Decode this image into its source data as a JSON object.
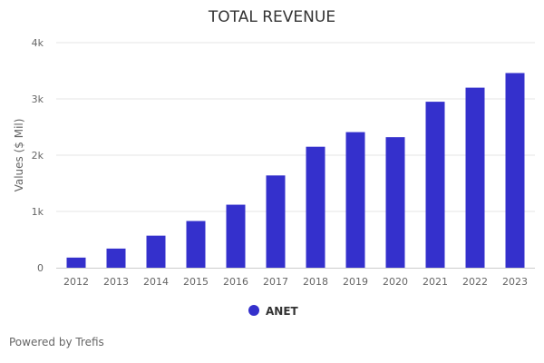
{
  "chart_data": {
    "type": "bar",
    "title": "TOTAL REVENUE",
    "ylabel": "Values ($ Mil)",
    "xlabel": "",
    "categories": [
      "2012",
      "2013",
      "2014",
      "2015",
      "2016",
      "2017",
      "2018",
      "2019",
      "2020",
      "2021",
      "2022",
      "2023"
    ],
    "series": [
      {
        "name": "ANET",
        "color": "#3430cc",
        "values": [
          180,
          340,
          570,
          830,
          1120,
          1640,
          2150,
          2410,
          2320,
          2950,
          3200,
          3460
        ]
      }
    ],
    "ylim": [
      0,
      4000
    ],
    "yticks": [
      0,
      1000,
      2000,
      3000,
      4000
    ],
    "ytick_labels": [
      "0",
      "1k",
      "2k",
      "3k",
      "4k"
    ],
    "grid": true,
    "legend_position": "bottom-center"
  },
  "footer": {
    "credit": "Powered by Trefis"
  }
}
